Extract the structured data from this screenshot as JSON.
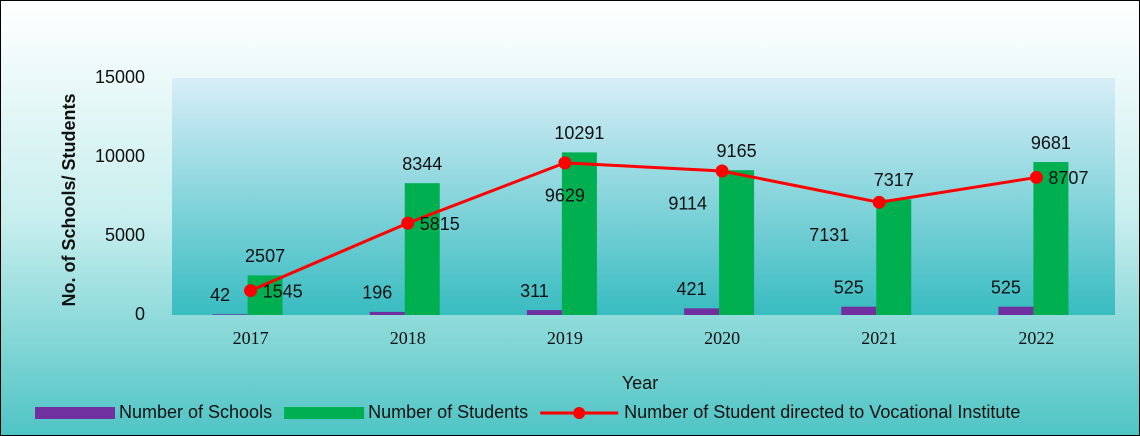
{
  "chart_data": {
    "type": "bar-line",
    "x_label": "Year",
    "y_label": "No. of Schools/ Students",
    "categories": [
      "2017",
      "2018",
      "2019",
      "2020",
      "2021",
      "2022"
    ],
    "series": [
      {
        "name": "Number of Schools",
        "color": "#7030a0",
        "type": "bar",
        "values": [
          42,
          196,
          311,
          421,
          525,
          525
        ]
      },
      {
        "name": "Number of Students",
        "color": "#00b050",
        "type": "bar",
        "values": [
          2507,
          8344,
          10291,
          9165,
          7317,
          9681
        ]
      },
      {
        "name": "Number of Student directed to Vocational Institute",
        "color": "#ff0000",
        "type": "line",
        "values": [
          1545,
          5815,
          9629,
          9114,
          7131,
          8707
        ]
      }
    ],
    "ylim": [
      0,
      15000
    ],
    "yticks": [
      0,
      5000,
      10000,
      15000
    ],
    "legend": "bottom"
  }
}
